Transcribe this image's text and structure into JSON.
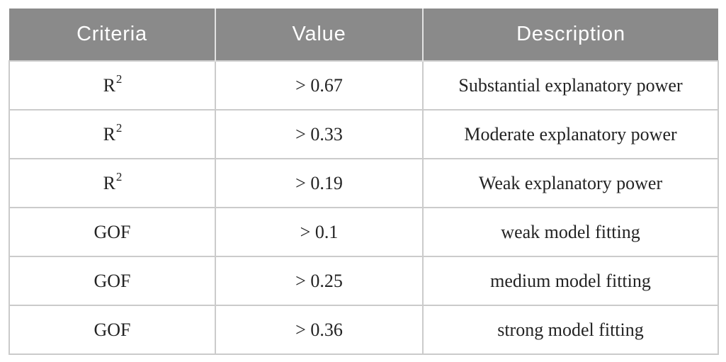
{
  "table": {
    "columns": [
      "Criteria",
      "Value",
      "Description"
    ],
    "rows": [
      {
        "criteria": "R",
        "criteria_sup": "2",
        "value": "> 0.67",
        "description": "Substantial explanatory power"
      },
      {
        "criteria": "R",
        "criteria_sup": "2",
        "value": "> 0.33",
        "description": "Moderate explanatory power"
      },
      {
        "criteria": "R",
        "criteria_sup": "2",
        "value": "> 0.19",
        "description": "Weak explanatory power"
      },
      {
        "criteria": "GOF",
        "criteria_sup": "",
        "value": "> 0.1",
        "description": "weak model fitting"
      },
      {
        "criteria": "GOF",
        "criteria_sup": "",
        "value": "> 0.25",
        "description": "medium model fitting"
      },
      {
        "criteria": "GOF",
        "criteria_sup": "",
        "value": "> 0.36",
        "description": "strong model fitting"
      }
    ]
  },
  "colors": {
    "header_background": "#8a8a8a",
    "header_text": "#ffffff",
    "body_text": "#232323",
    "grid_line": "#cbcbcb",
    "header_divider": "#e2e2e2",
    "page_background": "#ffffff"
  }
}
